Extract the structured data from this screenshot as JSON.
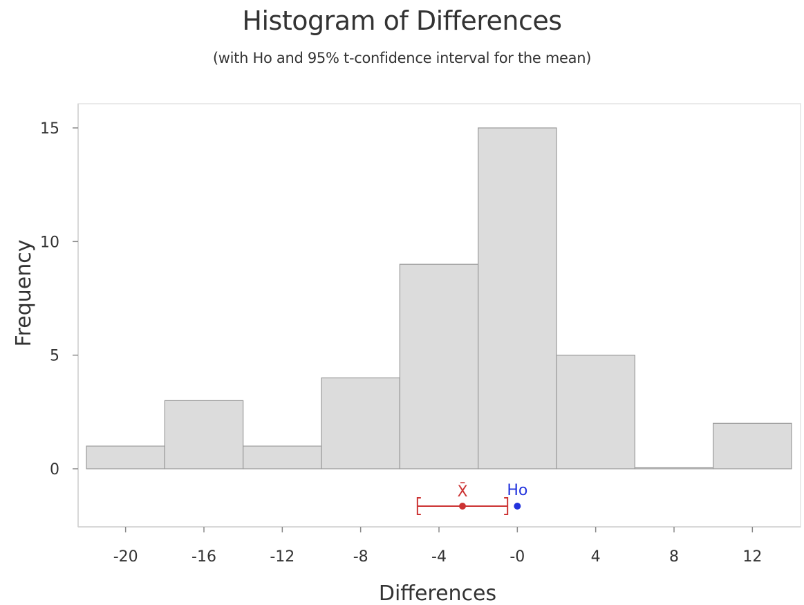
{
  "chart_data": {
    "type": "bar",
    "title": "Histogram of Differences",
    "subtitle": "(with Ho and 95% t-confidence interval for the mean)",
    "xlabel": "Differences",
    "ylabel": "Frequency",
    "bin_edges": [
      -22,
      -18,
      -14,
      -10,
      -6,
      -2,
      2,
      6,
      10,
      14
    ],
    "values": [
      1,
      3,
      1,
      4,
      9,
      15,
      5,
      0,
      2
    ],
    "xlim": [
      -22,
      14
    ],
    "ylim": [
      0,
      15
    ],
    "x_ticks": [
      -20,
      -16,
      -12,
      -8,
      -4,
      0,
      4,
      8,
      12
    ],
    "x_tick_labels": [
      "-20",
      "-16",
      "-12",
      "-8",
      "-4",
      "-0",
      "4",
      "8",
      "12"
    ],
    "y_ticks": [
      0,
      5,
      10,
      15
    ],
    "y_tick_labels": [
      "0",
      "5",
      "10",
      "15"
    ],
    "bar_color": "#dcdcdc",
    "bar_edge_color": "#9a9a9a",
    "confidence_interval": {
      "mean": -2.8,
      "lower": -5.1,
      "upper": -0.5,
      "mean_label": "X̄",
      "color": "#cc3333"
    },
    "null_hypothesis": {
      "value": 0,
      "label": "Ho",
      "color": "#2233dd"
    }
  }
}
